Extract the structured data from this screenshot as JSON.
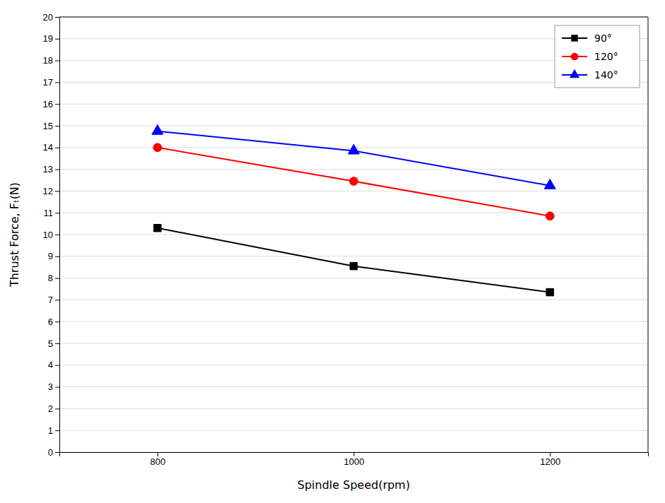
{
  "chart_data": {
    "type": "line",
    "x": [
      800,
      1000,
      1200
    ],
    "series": [
      {
        "name": "90°",
        "values": [
          10.3,
          8.55,
          7.35
        ],
        "color": "#000000",
        "marker": "square",
        "line_style": "solid"
      },
      {
        "name": "120°",
        "values": [
          14.0,
          12.45,
          10.85
        ],
        "color": "#ff0000",
        "marker": "circle",
        "line_style": "solid"
      },
      {
        "name": "140°",
        "values": [
          14.75,
          13.85,
          12.25
        ],
        "color": "#0000ff",
        "marker": "triangle",
        "line_style": "solid"
      }
    ],
    "xlabel": "Spindle Speed(rpm)",
    "ylabel": "Thrust Force, Fₜ(N)",
    "xlim": [
      700,
      1300
    ],
    "ylim": [
      0,
      20
    ],
    "xticks": [
      800,
      1000,
      1200
    ],
    "yticks": [
      0,
      1,
      2,
      3,
      4,
      5,
      6,
      7,
      8,
      9,
      10,
      11,
      12,
      13,
      14,
      15,
      16,
      17,
      18,
      19,
      20
    ],
    "grid": "y",
    "legend": "upper right"
  }
}
